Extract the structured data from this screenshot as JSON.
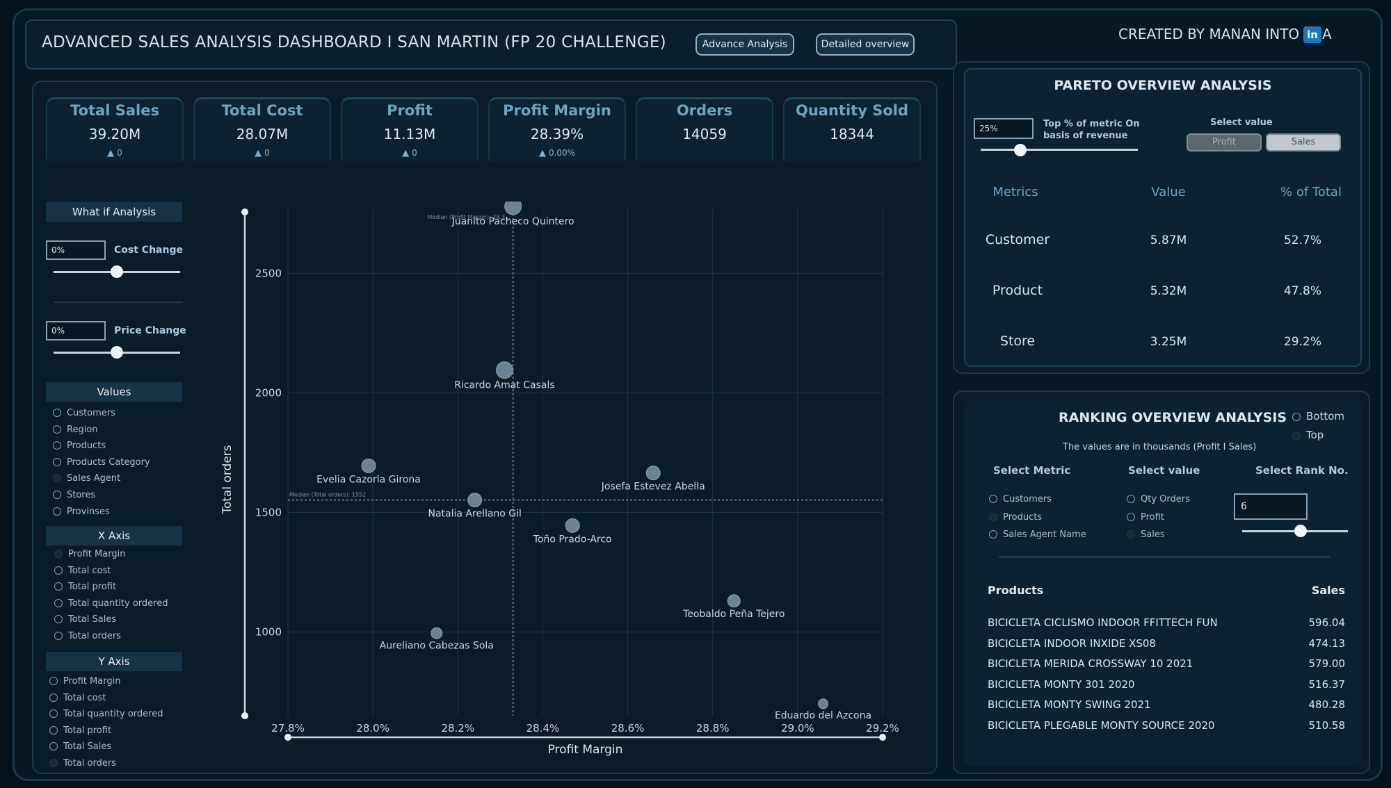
{
  "header": {
    "title": "ADVANCED SALES ANALYSIS DASHBOARD I SAN MARTIN (FP 20 CHALLENGE)",
    "btn_advance": "Advance Analysis",
    "btn_detailed": "Detailed overview",
    "created_by": "CREATED BY MANAN INTO",
    "linkedin_icon_text": "in",
    "created_by_suffix": "A"
  },
  "kpis": [
    {
      "label": "Total Sales",
      "value": "39.20M",
      "delta": "0"
    },
    {
      "label": "Total Cost",
      "value": "28.07M",
      "delta": "0"
    },
    {
      "label": "Profit",
      "value": "11.13M",
      "delta": "0"
    },
    {
      "label": "Profit Margin",
      "value": "28.39%",
      "delta": "0.00%"
    },
    {
      "label": "Orders",
      "value": "14059",
      "delta": ""
    },
    {
      "label": "Quantity Sold",
      "value": "18344",
      "delta": ""
    }
  ],
  "sidebar": {
    "what_if": "What if Analysis",
    "cost_change_value": "0%",
    "cost_change_label": "Cost Change",
    "cost_change_level": 0.5,
    "price_change_value": "0%",
    "price_change_label": "Price Change",
    "price_change_level": 0.5,
    "values_header": "Values",
    "values": [
      {
        "label": "Customers",
        "selected": false
      },
      {
        "label": "Region",
        "selected": false
      },
      {
        "label": "Products",
        "selected": false
      },
      {
        "label": "Products Category",
        "selected": false
      },
      {
        "label": "Sales Agent",
        "selected": true
      },
      {
        "label": "Stores",
        "selected": false
      },
      {
        "label": "Provinses",
        "selected": false
      }
    ],
    "x_axis_header": "X Axis",
    "x_axis": [
      {
        "label": "Profit Margin",
        "selected": true
      },
      {
        "label": "Total cost",
        "selected": false
      },
      {
        "label": "Total profit",
        "selected": false
      },
      {
        "label": "Total quantity ordered",
        "selected": false
      },
      {
        "label": "Total Sales",
        "selected": false
      },
      {
        "label": "Total orders",
        "selected": false
      }
    ],
    "y_axis_header": "Y Axis",
    "y_axis": [
      {
        "label": "Profit Margin",
        "selected": false
      },
      {
        "label": "Total cost",
        "selected": false
      },
      {
        "label": "Total quantity ordered",
        "selected": false
      },
      {
        "label": "Total profit",
        "selected": false
      },
      {
        "label": "Total Sales",
        "selected": false
      },
      {
        "label": "Total orders",
        "selected": true
      }
    ]
  },
  "chart_data": {
    "type": "scatter",
    "xlabel": "Profit Margin",
    "ylabel": "Total orders",
    "xlim": [
      27.8,
      29.2
    ],
    "ylim": [
      650,
      2800
    ],
    "x_ticks": [
      "27.8%",
      "28.0%",
      "28.2%",
      "28.4%",
      "28.6%",
      "28.8%",
      "29.0%",
      "29.2%"
    ],
    "x_tick_values": [
      27.8,
      28.0,
      28.2,
      28.4,
      28.6,
      28.8,
      29.0,
      29.2
    ],
    "y_ticks": [
      "1000",
      "1500",
      "2000",
      "2500"
    ],
    "y_tick_values": [
      1000,
      1500,
      2000,
      2500
    ],
    "median_x": 28.33,
    "median_x_label": "Median (Profit Margin): 28.3...",
    "median_y": 1552,
    "median_y_label": "Median (Total orders): 1552",
    "points": [
      {
        "name": "Juanito Pacheco Quintero",
        "x": 28.33,
        "y": 2780,
        "size": 12
      },
      {
        "name": "Ricardo Amat Casals",
        "x": 28.31,
        "y": 2095,
        "size": 12
      },
      {
        "name": "Evelia Cazorla Girona",
        "x": 27.99,
        "y": 1695,
        "size": 10
      },
      {
        "name": "Josefa Estevez Abella",
        "x": 28.66,
        "y": 1665,
        "size": 10
      },
      {
        "name": "Natalia Arellano Gil",
        "x": 28.24,
        "y": 1552,
        "size": 10
      },
      {
        "name": "Toño Prado-Arco",
        "x": 28.47,
        "y": 1445,
        "size": 10
      },
      {
        "name": "Teobaldo Peña Tejero",
        "x": 28.85,
        "y": 1130,
        "size": 9
      },
      {
        "name": "Aureliano Cabezas Sola",
        "x": 28.15,
        "y": 995,
        "size": 8
      },
      {
        "name": "Eduardo del Azcona",
        "x": 29.06,
        "y": 700,
        "size": 7
      }
    ]
  },
  "pareto": {
    "title": "PARETO OVERVIEW ANALYSIS",
    "pct_value": "25%",
    "pct_label": "Top % of metric On basis of revenue",
    "pct_level": 0.25,
    "select_value_label": "Select value",
    "btn_profit": "Profit",
    "btn_sales": "Sales",
    "headers": [
      "Metrics",
      "Value",
      "% of Total"
    ],
    "rows": [
      {
        "metric": "Customer",
        "value": "5.87M",
        "pct": "52.7%"
      },
      {
        "metric": "Product",
        "value": "5.32M",
        "pct": "47.8%"
      },
      {
        "metric": "Store",
        "value": "3.25M",
        "pct": "29.2%"
      }
    ]
  },
  "ranking": {
    "title": "RANKING OVERVIEW ANALYSIS",
    "opt_bottom": "Bottom",
    "opt_top": "Top",
    "subtitle": "The values are in thousands (Profit I Sales)",
    "select_metric": "Select Metric",
    "select_value": "Select value",
    "select_rank": "Select Rank No.",
    "metrics": [
      {
        "label": "Customers",
        "selected": false
      },
      {
        "label": "Products",
        "selected": true
      },
      {
        "label": "Sales Agent Name",
        "selected": false
      }
    ],
    "values": [
      {
        "label": "Qty Orders",
        "selected": false
      },
      {
        "label": "Profit",
        "selected": false
      },
      {
        "label": "Sales",
        "selected": true
      }
    ],
    "rank_no": "6",
    "rank_level": 0.55,
    "list_header_left": "Products",
    "list_header_right": "Sales",
    "list": [
      {
        "product": "BICICLETA CICLISMO INDOOR FFITTECH FUN",
        "sales": "596.04"
      },
      {
        "product": "BICICLETA INDOOR INXIDE XS08",
        "sales": "474.13"
      },
      {
        "product": "BICICLETA MERIDA CROSSWAY 10 2021",
        "sales": "579.00"
      },
      {
        "product": "BICICLETA MONTY 301 2020",
        "sales": "516.37"
      },
      {
        "product": "BICICLETA MONTY SWING 2021",
        "sales": "480.28"
      },
      {
        "product": "BICICLETA PLEGABLE MONTY SOURCE 2020",
        "sales": "510.58"
      }
    ]
  }
}
